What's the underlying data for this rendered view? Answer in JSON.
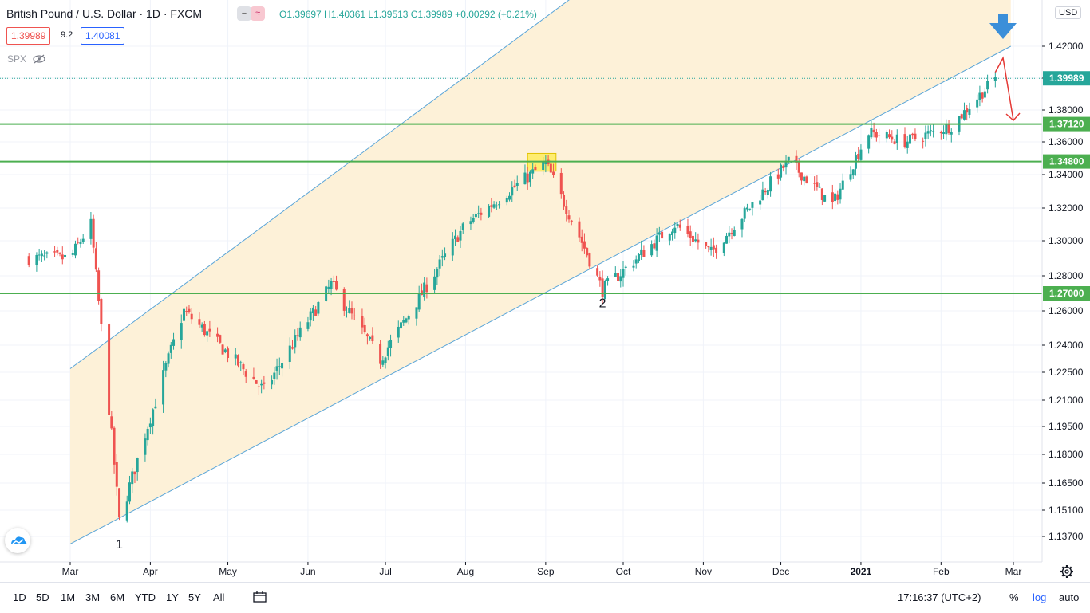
{
  "header": {
    "symbol_title": "British Pound / U.S. Dollar · 1D · FXCM",
    "ohlc_text": "O1.39697 H1.40361 L1.39513 C1.39989 +0.00292 (+0.21%)",
    "bid": "1.39989",
    "spread": "9.2",
    "ask": "1.40081",
    "minus_label": "−",
    "approx_label": "≈",
    "usd_label": "USD"
  },
  "indicator": {
    "label": "SPX"
  },
  "chart_data": {
    "type": "candlestick",
    "title": "British Pound / U.S. Dollar · 1D · FXCM",
    "price_axis_ticks": [
      "1.42000",
      "1.40000",
      "1.38000",
      "1.36000",
      "1.34000",
      "1.32000",
      "1.30000",
      "1.28000",
      "1.26000",
      "1.24000",
      "1.22500",
      "1.21000",
      "1.19500",
      "1.18000",
      "1.16500",
      "1.15100",
      "1.13700"
    ],
    "time_axis_ticks": [
      "Mar",
      "Apr",
      "May",
      "Jun",
      "Jul",
      "Aug",
      "Sep",
      "Oct",
      "Nov",
      "Dec",
      "2021",
      "Feb",
      "Mar"
    ],
    "horizontal_levels": [
      {
        "label": "1.37120",
        "value": 1.3712
      },
      {
        "label": "1.34800",
        "value": 1.348
      },
      {
        "label": "1.27000",
        "value": 1.27
      }
    ],
    "current_price": {
      "label": "1.39989",
      "value": 1.39989
    },
    "annotations": [
      {
        "text": "1",
        "date": "2020-03-20",
        "price": 1.14
      },
      {
        "text": "2",
        "date": "2020-09-23",
        "price": 1.272
      }
    ],
    "channel": {
      "lower_line": [
        {
          "date": "2020-03-01",
          "price": 1.133
        },
        {
          "date": "2021-02-28",
          "price": 1.42
        }
      ],
      "upper_line": [
        {
          "date": "2020-03-01",
          "price": 1.227
        },
        {
          "date": "2020-09-15",
          "price": 1.455
        }
      ]
    },
    "highlight_box": {
      "date_start": "2020-08-25",
      "date_end": "2020-09-05",
      "price_low": 1.347,
      "price_high": 1.351
    },
    "forecast_arrow": [
      {
        "date": "2021-02-22",
        "price": 1.4037
      },
      {
        "date": "2021-02-25",
        "price": 1.4127
      },
      {
        "date": "2021-03-01",
        "price": 1.3735
      }
    ],
    "major_swing_points": [
      {
        "date": "2020-03-01",
        "price": 1.29
      },
      {
        "date": "2020-03-09",
        "price": 1.31
      },
      {
        "date": "2020-03-20",
        "price": 1.145
      },
      {
        "date": "2020-04-14",
        "price": 1.26
      },
      {
        "date": "2020-05-15",
        "price": 1.215
      },
      {
        "date": "2020-06-10",
        "price": 1.275
      },
      {
        "date": "2020-06-29",
        "price": 1.232
      },
      {
        "date": "2020-08-01",
        "price": 1.31
      },
      {
        "date": "2020-09-01",
        "price": 1.347
      },
      {
        "date": "2020-09-23",
        "price": 1.272
      },
      {
        "date": "2020-10-21",
        "price": 1.31
      },
      {
        "date": "2020-11-04",
        "price": 1.293
      },
      {
        "date": "2020-12-04",
        "price": 1.348
      },
      {
        "date": "2020-12-21",
        "price": 1.322
      },
      {
        "date": "2021-01-04",
        "price": 1.366
      },
      {
        "date": "2021-01-18",
        "price": 1.36
      },
      {
        "date": "2021-02-05",
        "price": 1.37
      },
      {
        "date": "2021-02-22",
        "price": 1.3999
      }
    ],
    "colors": {
      "up": "#26a69a",
      "down": "#ef5350",
      "channel_fill": "#fdf1d8",
      "channel_line": "#5aa5d8",
      "level_line": "#4caf50",
      "forecast_arrow": "#e53935",
      "highlight": "#ffeb3b",
      "price_line": "#26a69a"
    }
  },
  "bottom_bar": {
    "ranges": [
      "1D",
      "5D",
      "1M",
      "3M",
      "6M",
      "YTD",
      "1Y",
      "5Y",
      "All"
    ],
    "time": "17:16:37 (UTC+2)",
    "percent": "%",
    "log": "log",
    "auto": "auto"
  }
}
